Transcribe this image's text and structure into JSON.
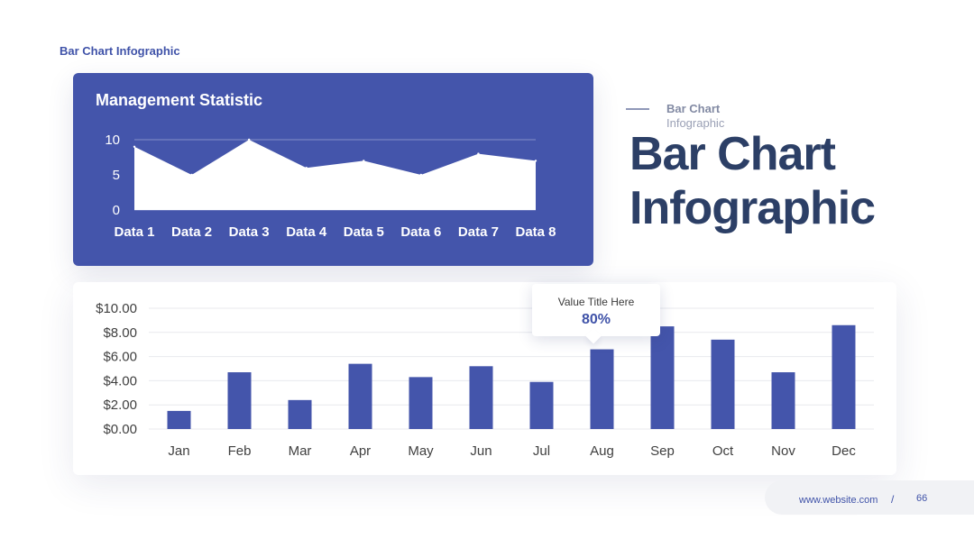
{
  "header": {
    "label": "Bar Chart  Infographic"
  },
  "side": {
    "small_line1": "Bar Chart",
    "small_line2": "Infographic",
    "big_line1": "Bar Chart",
    "big_line2": "Infographic"
  },
  "tooltip": {
    "title": "Value Title Here",
    "value": "80%"
  },
  "footer": {
    "url": "www.website.com",
    "separator": "/",
    "page": "66"
  },
  "colors": {
    "primary": "#4455ab",
    "bar": "#4455ab",
    "title_dark": "#2c3f66",
    "accent_text": "#3f52a8"
  },
  "chart_data": [
    {
      "type": "area",
      "title": "Management Statistic",
      "categories": [
        "Data 1",
        "Data 2",
        "Data 3",
        "Data 4",
        "Data 5",
        "Data 6",
        "Data 7",
        "Data 8"
      ],
      "values": [
        9,
        5,
        10,
        6,
        7,
        5,
        8,
        7
      ],
      "yticks": [
        "0",
        "5",
        "10"
      ],
      "ylim": [
        0,
        10
      ],
      "grid": true
    },
    {
      "type": "bar",
      "title": "",
      "categories": [
        "Jan",
        "Feb",
        "Mar",
        "Apr",
        "May",
        "Jun",
        "Jul",
        "Aug",
        "Sep",
        "Oct",
        "Nov",
        "Dec"
      ],
      "values": [
        1.5,
        4.7,
        2.4,
        5.4,
        4.3,
        5.2,
        3.9,
        6.6,
        8.5,
        7.4,
        4.7,
        8.6
      ],
      "yticks": [
        "$0.00",
        "$2.00",
        "$4.00",
        "$6.00",
        "$8.00",
        "$10.00"
      ],
      "ylim": [
        0,
        10
      ],
      "grid": true
    }
  ]
}
